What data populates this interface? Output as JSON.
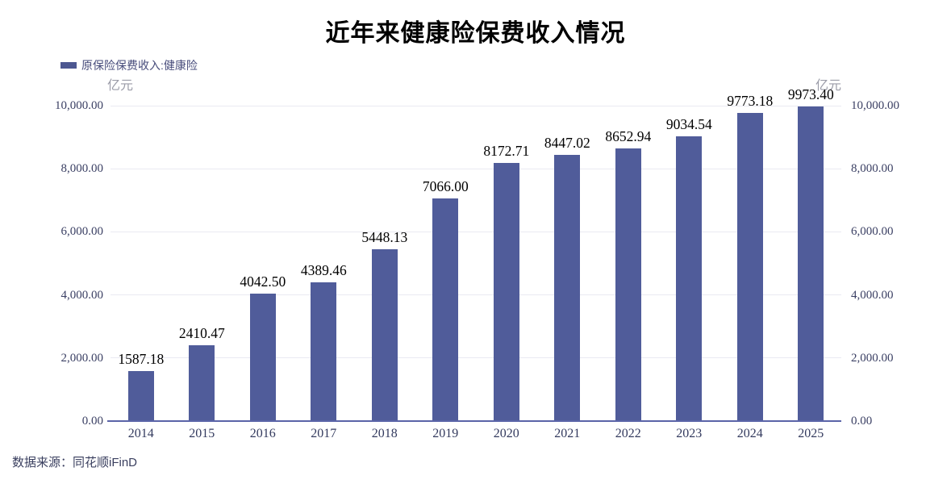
{
  "source": "数据来源：同花顺iFinD",
  "colors": {
    "bar": "#505c9a",
    "legend_swatch": "#4d5791",
    "baseline": "#5a64a8",
    "gridline": "#eaeaf2",
    "axis_text": "#3a3f63",
    "value_label_text": "#000000",
    "unit_text": "#9b9ca8",
    "legend_text": "#474c7b",
    "title_text": "#000000"
  },
  "chart_data": {
    "type": "bar",
    "title": "近年来健康险保费收入情况",
    "legend": "原保险保费收入:健康险",
    "legend_position": "top-left",
    "unit": "亿元",
    "xlabel": "",
    "ylabel": "亿元",
    "categories": [
      "2014",
      "2015",
      "2016",
      "2017",
      "2018",
      "2019",
      "2020",
      "2021",
      "2022",
      "2023",
      "2024",
      "2025"
    ],
    "series": [
      {
        "name": "原保险保费收入:健康险",
        "values": [
          1587.18,
          2410.47,
          4042.5,
          4389.46,
          5448.13,
          7066.0,
          8172.71,
          8447.02,
          8652.94,
          9034.54,
          9773.18,
          9973.4
        ]
      }
    ],
    "value_labels": [
      "1587.18",
      "2410.47",
      "4042.50",
      "4389.46",
      "5448.13",
      "7066.00",
      "8172.71",
      "8447.02",
      "8652.94",
      "9034.54",
      "9773.18",
      "9973.40"
    ],
    "ylim": [
      0,
      10000
    ],
    "ytick_values": [
      0,
      2000,
      4000,
      6000,
      8000,
      10000
    ],
    "ytick_labels": [
      "0.00",
      "2,000.00",
      "4,000.00",
      "6,000.00",
      "8,000.00",
      "10,000.00"
    ],
    "grid": true,
    "y_axis_sides": "both"
  }
}
